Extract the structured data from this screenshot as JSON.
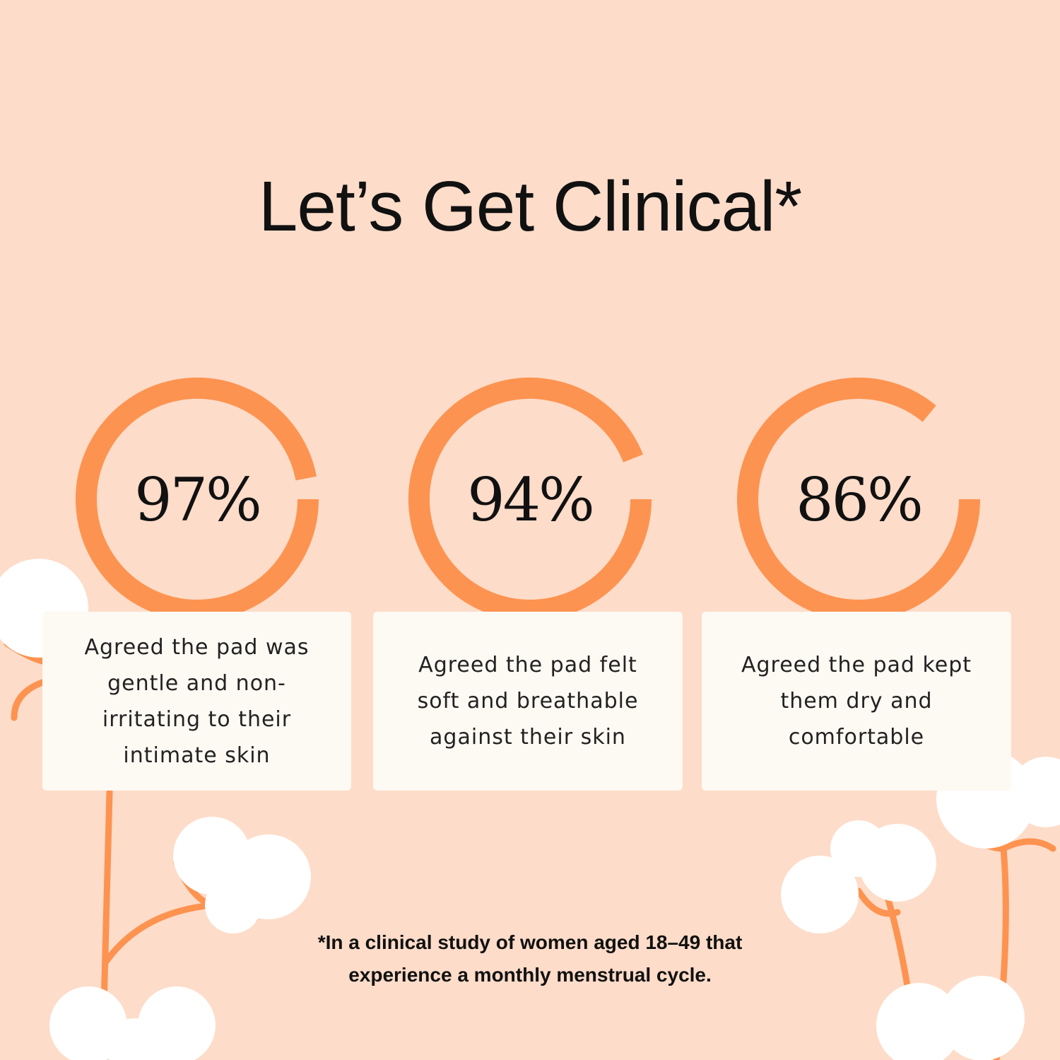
{
  "title": "Let’s Get Clinical*",
  "colors": {
    "background": "#fddcc9",
    "accent": "#fd9350",
    "card": "#fdf9f3"
  },
  "stats": [
    {
      "value": 97,
      "label": "97%",
      "text": "Agreed the pad was\ngentle and non-\nirritating to their\nintimate skin"
    },
    {
      "value": 94,
      "label": "94%",
      "text": "Agreed the pad felt\nsoft and breathable\nagainst their skin"
    },
    {
      "value": 86,
      "label": "86%",
      "text": "Agreed the pad kept\nthem dry and\ncomfortable"
    }
  ],
  "footnote": "*In a clinical study of women aged 18–49 that\nexperience a monthly menstrual cycle.",
  "decorations": [
    "cotton-flower-icon"
  ]
}
